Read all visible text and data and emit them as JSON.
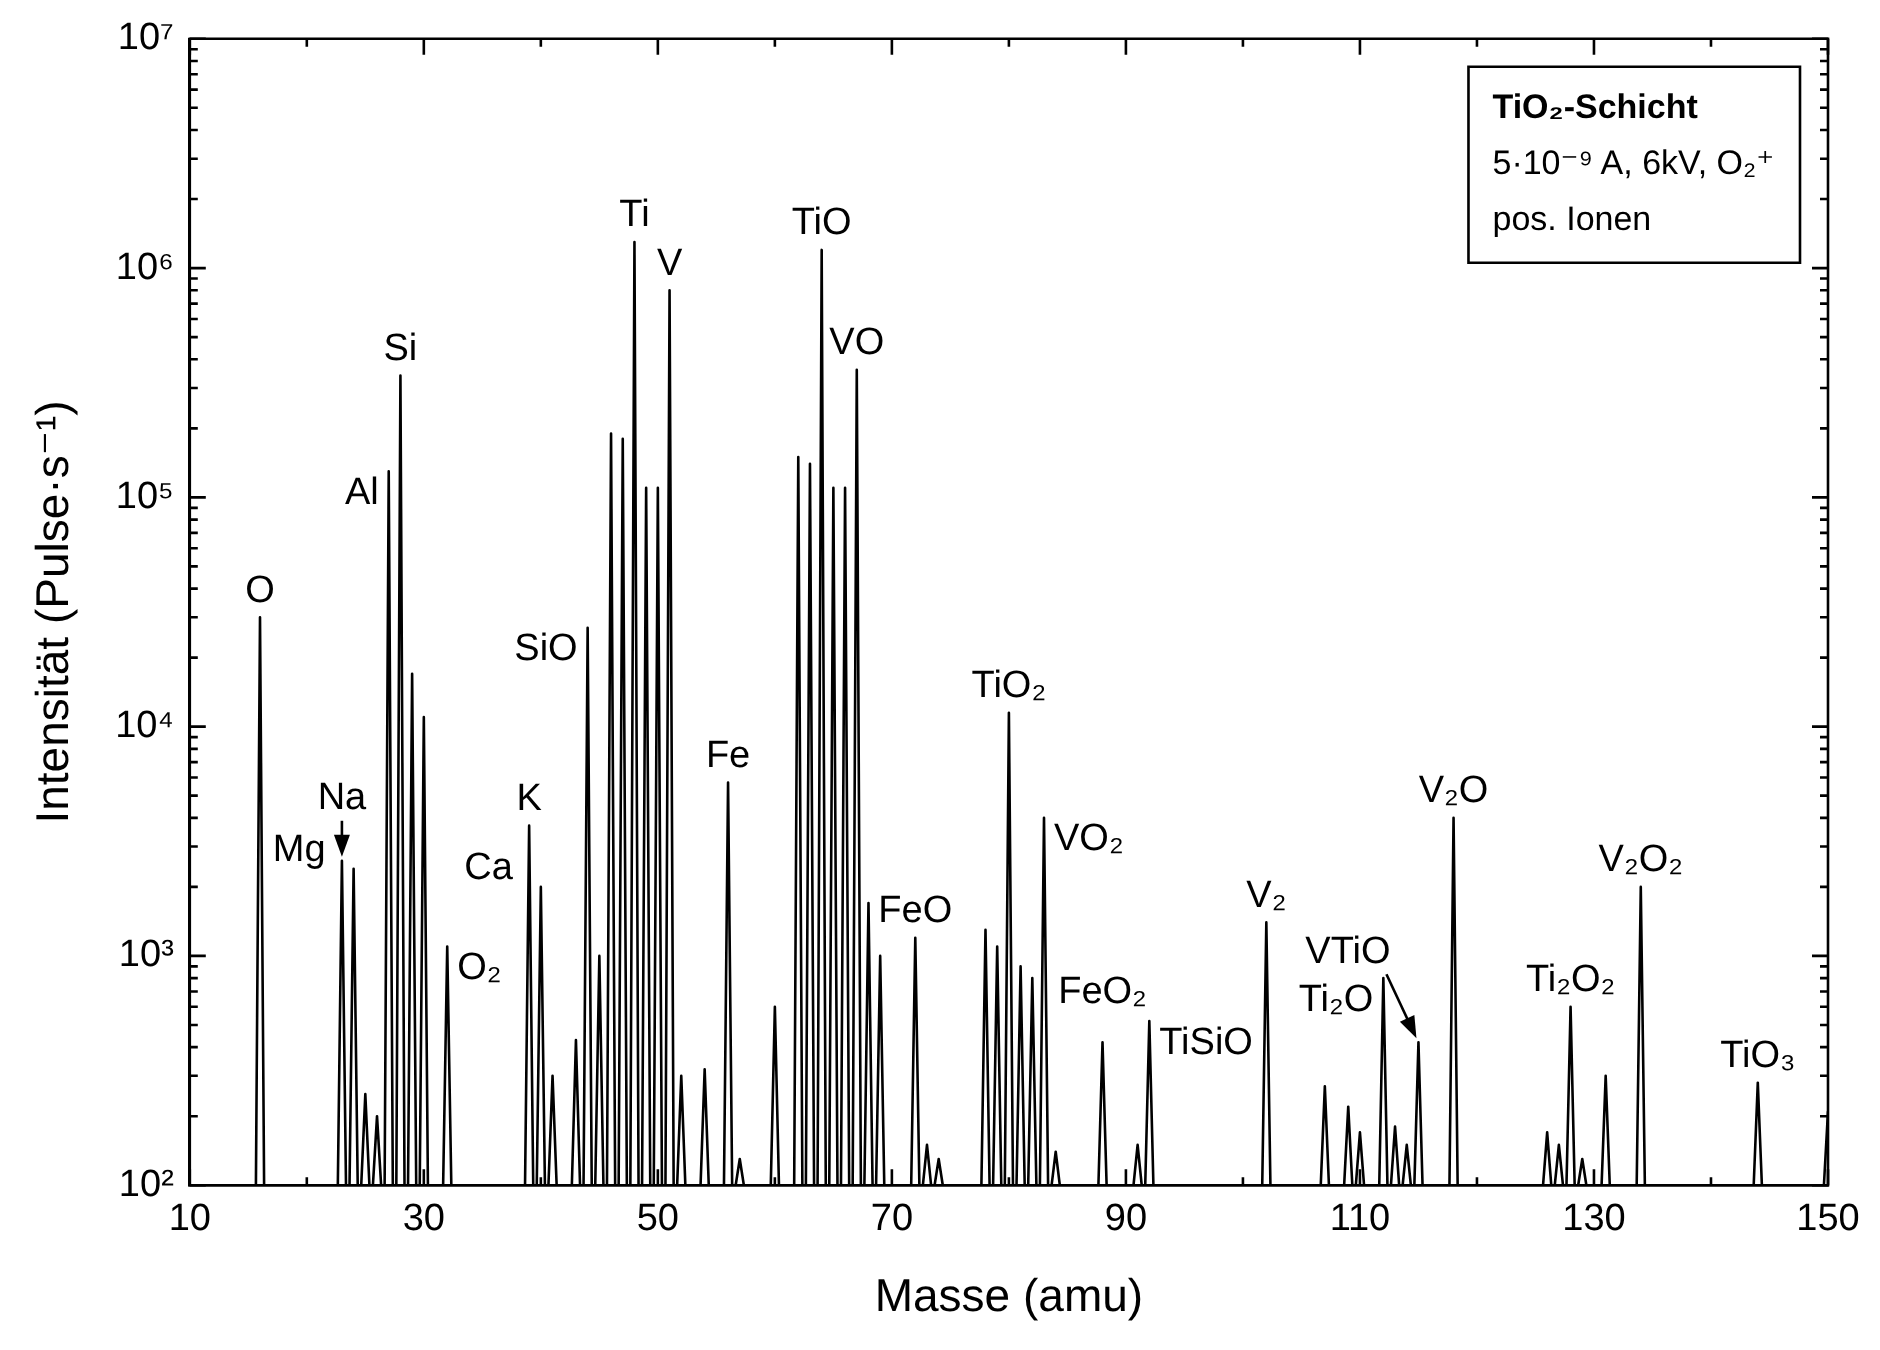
{
  "chart_data": {
    "type": "line",
    "xlabel": "Masse (amu)",
    "ylabel": "Intensität (Pulse·s⁻¹)",
    "log": "y",
    "grid": false,
    "legend": false,
    "marker": "none",
    "line_style": "solid",
    "color": "#000000",
    "xlim": [
      10,
      150
    ],
    "xticks": [
      10,
      {
        "value": 20,
        "label": null
      },
      30,
      {
        "value": 40,
        "label": null
      },
      50,
      {
        "value": 60,
        "label": null
      },
      70,
      {
        "value": 80,
        "label": null
      },
      90,
      {
        "value": 100,
        "label": null
      },
      110,
      {
        "value": 120,
        "label": null
      },
      130,
      {
        "value": 140,
        "label": null
      },
      150
    ],
    "ylim": [
      100,
      10000000
    ],
    "yticks": [
      {
        "value": 100,
        "label": "10²"
      },
      {
        "value": 1000,
        "label": "10³"
      },
      {
        "value": 10000,
        "label": "10⁴"
      },
      {
        "value": 100000,
        "label": "10⁵"
      },
      {
        "value": 1000000,
        "label": "10⁶"
      },
      {
        "value": 10000000,
        "label": "10⁷"
      }
    ],
    "x": [
      15.65,
      16,
      16.35,
      22.65,
      23,
      23.35,
      23.65,
      24,
      24.35,
      24.65,
      25,
      25.35,
      25.65,
      26,
      26.35,
      26.65,
      27,
      27.35,
      27.65,
      28,
      28.35,
      28.65,
      29,
      29.35,
      29.65,
      30,
      30.35,
      31.65,
      32,
      32.35,
      38.65,
      39,
      39.35,
      39.65,
      40,
      40.35,
      40.65,
      41,
      41.35,
      42.65,
      43,
      43.35,
      43.65,
      44,
      44.35,
      44.65,
      45,
      45.35,
      45.65,
      46,
      46.35,
      46.65,
      47,
      47.35,
      47.65,
      48,
      48.35,
      48.65,
      49,
      49.35,
      49.65,
      50,
      50.35,
      50.65,
      51,
      51.35,
      51.65,
      52,
      52.35,
      53.65,
      54,
      54.35,
      55.65,
      56,
      56.35,
      56.65,
      57,
      57.35,
      59.65,
      60,
      60.35,
      61.65,
      62,
      62.35,
      62.65,
      63,
      63.35,
      63.65,
      64,
      64.35,
      64.65,
      65,
      65.35,
      65.65,
      66,
      66.35,
      66.65,
      67,
      67.35,
      67.65,
      68,
      68.35,
      68.65,
      69,
      69.35,
      71.65,
      72,
      72.35,
      72.65,
      73,
      73.35,
      73.65,
      74,
      74.35,
      77.65,
      78,
      78.35,
      78.65,
      79,
      79.35,
      79.65,
      80,
      80.35,
      80.65,
      81,
      81.35,
      81.65,
      82,
      82.35,
      82.65,
      83,
      83.35,
      83.65,
      84,
      84.35,
      87.65,
      88,
      88.35,
      90.65,
      91,
      91.35,
      91.65,
      92,
      92.35,
      101.65,
      102,
      102.35,
      106.65,
      107,
      107.35,
      108.65,
      109,
      109.35,
      109.65,
      110,
      110.35,
      111.65,
      112,
      112.35,
      112.65,
      113,
      113.35,
      113.65,
      114,
      114.35,
      114.65,
      115,
      115.35,
      117.65,
      118,
      118.35,
      125.65,
      126,
      126.35,
      126.65,
      127,
      127.35,
      127.65,
      128,
      128.35,
      128.65,
      129,
      129.35,
      130.65,
      131,
      131.35,
      133.65,
      134,
      134.35,
      143.65,
      144,
      144.35,
      149.65,
      150
    ],
    "values": [
      100,
      30000,
      100,
      100,
      2600,
      100,
      100,
      2400,
      100,
      100,
      250,
      100,
      100,
      200,
      100,
      100,
      130000,
      100,
      100,
      340000,
      100,
      100,
      17000,
      100,
      100,
      11000,
      100,
      100,
      1100,
      100,
      100,
      3700,
      100,
      100,
      2000,
      100,
      100,
      300,
      100,
      100,
      430,
      100,
      100,
      27000,
      100,
      100,
      1000,
      100,
      100,
      190000,
      100,
      100,
      180000,
      100,
      100,
      1300000,
      100,
      100,
      110000,
      100,
      100,
      110000,
      100,
      100,
      800000,
      100,
      100,
      300,
      100,
      100,
      320,
      100,
      100,
      5700,
      100,
      100,
      130,
      100,
      100,
      600,
      100,
      100,
      150000,
      100,
      100,
      140000,
      100,
      100,
      1200000,
      100,
      100,
      110000,
      100,
      100,
      110000,
      100,
      100,
      360000,
      100,
      100,
      1700,
      100,
      100,
      1000,
      100,
      100,
      1200,
      100,
      100,
      150,
      100,
      100,
      130,
      100,
      100,
      1300,
      100,
      100,
      1100,
      100,
      100,
      11500,
      100,
      100,
      900,
      100,
      100,
      800,
      100,
      100,
      4000,
      100,
      100,
      140,
      100,
      100,
      420,
      100,
      100,
      150,
      100,
      100,
      520,
      100,
      100,
      1400,
      100,
      100,
      270,
      100,
      100,
      220,
      100,
      100,
      170,
      100,
      100,
      800,
      100,
      100,
      180,
      100,
      100,
      150,
      100,
      100,
      420,
      100,
      100,
      4000,
      100,
      100,
      170,
      100,
      100,
      150,
      100,
      100,
      600,
      100,
      100,
      130,
      100,
      100,
      300,
      100,
      100,
      2000,
      100,
      100,
      280,
      100,
      100,
      210
    ],
    "annotations": [
      "TiO₂-Schicht",
      "5·10⁻⁹ A, 6kV, O₂⁺",
      "pos. Ionen",
      {
        "text": "O",
        "x": 16,
        "y": 30000
      },
      {
        "text": "Si",
        "x": 28,
        "y": 340000
      },
      {
        "text": "Al",
        "x": 27,
        "y": 130000
      },
      {
        "text": "Ti",
        "x": 48,
        "y": 1300000
      },
      {
        "text": "V",
        "x": 51,
        "y": 800000
      },
      {
        "text": "TiO",
        "x": 64,
        "y": 1200000
      },
      {
        "text": "VO",
        "x": 67,
        "y": 360000
      },
      {
        "text": "SiO",
        "x": 44,
        "y": 27000
      },
      {
        "text": "Mg",
        "x": 24,
        "y": 2400
      },
      {
        "text": "Na",
        "x": 23,
        "y": 2600
      },
      {
        "text": "K",
        "x": 39,
        "y": 3700
      },
      {
        "text": "Ca",
        "x": 40,
        "y": 2000
      },
      {
        "text": "O₂",
        "x": 32,
        "y": 1100
      },
      {
        "text": "Fe",
        "x": 56,
        "y": 5700
      },
      {
        "text": "FeO",
        "x": 72,
        "y": 1200
      },
      {
        "text": "TiO₂",
        "x": 80,
        "y": 11500
      },
      {
        "text": "VO₂",
        "x": 83,
        "y": 4000
      },
      {
        "text": "FeO₂",
        "x": 88,
        "y": 420
      },
      {
        "text": "TiSiO",
        "x": 92,
        "y": 520
      },
      {
        "text": "V₂",
        "x": 102,
        "y": 1400
      },
      {
        "text": "VTiO",
        "x": 115,
        "y": 420
      },
      {
        "text": "Ti₂O",
        "x": 112,
        "y": 800
      },
      {
        "text": "V₂O",
        "x": 118,
        "y": 4000
      },
      {
        "text": "Ti₂O₂",
        "x": 128,
        "y": 600
      },
      {
        "text": "V₂O₂",
        "x": 134,
        "y": 2000
      },
      {
        "text": "TiO₃",
        "x": 144,
        "y": 280
      }
    ]
  }
}
